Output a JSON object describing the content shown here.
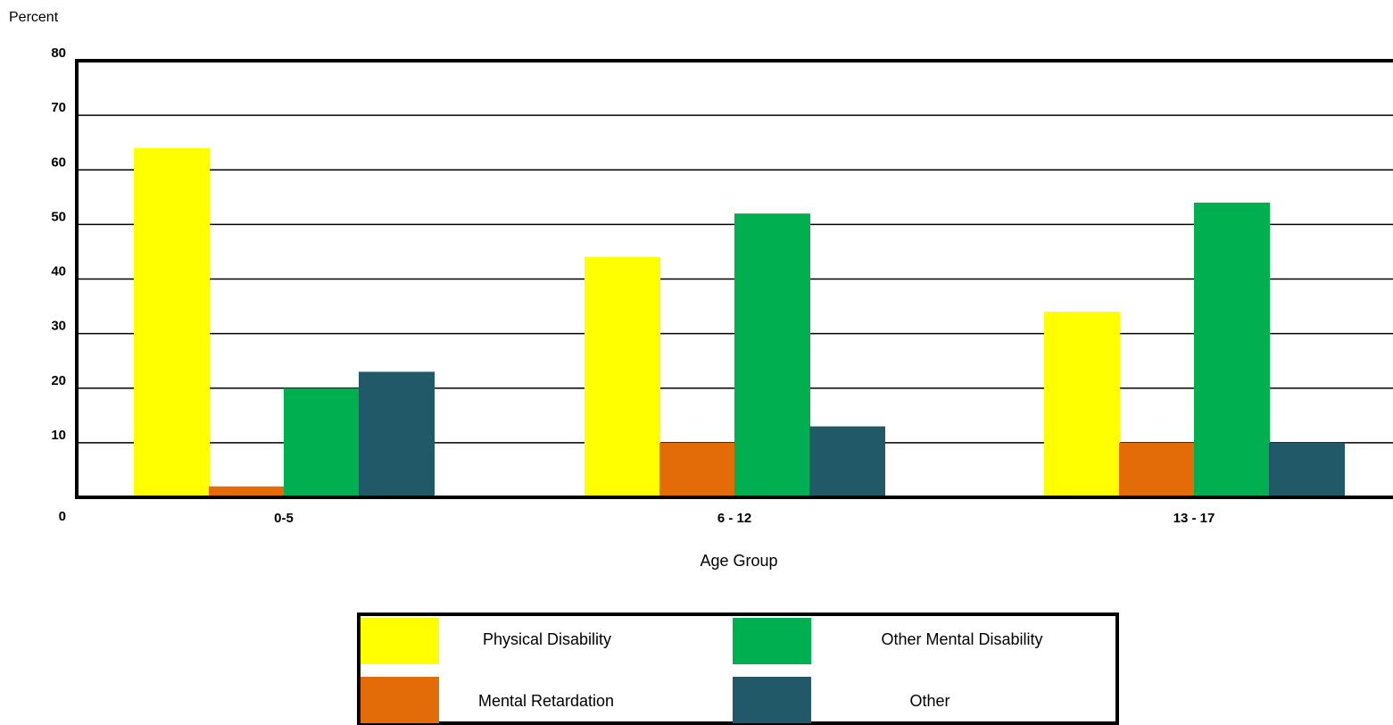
{
  "chart_data": {
    "type": "bar",
    "title": "",
    "ylabel": "Percent",
    "xlabel": "Age Group",
    "ylim": [
      0,
      80
    ],
    "yticks": [
      0,
      10,
      20,
      30,
      40,
      50,
      60,
      70,
      80
    ],
    "grid": true,
    "legend_position": "bottom-center",
    "categories": [
      "0-5",
      "6 - 12",
      "13 - 17"
    ],
    "series": [
      {
        "name": "Physical Disability",
        "color": "#FFFF00",
        "values": [
          64,
          44,
          34
        ]
      },
      {
        "name": "Mental Retardation",
        "color": "#E36C09",
        "values": [
          2,
          10,
          10
        ]
      },
      {
        "name": "Other Mental Disability",
        "color": "#00B050",
        "values": [
          20,
          52,
          54
        ]
      },
      {
        "name": "Other",
        "color": "#215968",
        "values": [
          23,
          13,
          10
        ]
      }
    ]
  }
}
